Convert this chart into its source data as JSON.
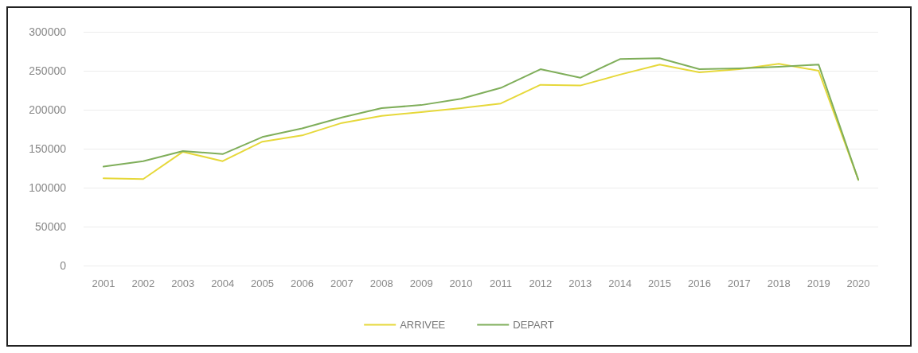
{
  "chart_data": {
    "type": "line",
    "categories": [
      "2001",
      "2002",
      "2003",
      "2004",
      "2005",
      "2006",
      "2007",
      "2008",
      "2009",
      "2010",
      "2011",
      "2012",
      "2013",
      "2014",
      "2015",
      "2016",
      "2017",
      "2018",
      "2019",
      "2020"
    ],
    "series": [
      {
        "name": "ARRIVEE",
        "color": "#e6d83a",
        "values": [
          112000,
          111000,
          146000,
          134000,
          159000,
          167000,
          183000,
          192000,
          197000,
          202000,
          208000,
          232000,
          231000,
          245000,
          258000,
          248000,
          252000,
          259000,
          250000,
          110000
        ]
      },
      {
        "name": "DEPART",
        "color": "#7fae5a",
        "values": [
          127000,
          134000,
          147000,
          143000,
          165000,
          176000,
          190000,
          202000,
          206000,
          214000,
          228000,
          252000,
          241000,
          265000,
          266000,
          252000,
          253000,
          255000,
          258000,
          110000
        ]
      }
    ],
    "ylim": [
      0,
      300000
    ],
    "yticks": [
      0,
      50000,
      100000,
      150000,
      200000,
      250000,
      300000
    ],
    "grid": "y",
    "legend": "bottom",
    "marker": "none",
    "line_style": "solid"
  }
}
